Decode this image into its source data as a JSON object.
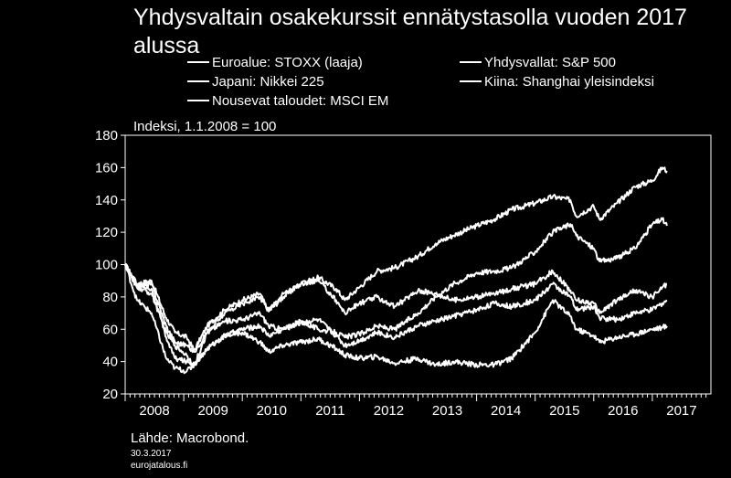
{
  "title": "Yhdysvaltain osakekurssit ennätystasolla vuoden 2017 alussa",
  "unit_label": "Indeksi, 1.1.2008 = 100",
  "legend": [
    "Euroalue: STOXX (laaja)",
    "Yhdysvallat: S&P 500",
    "Japani: Nikkei 225",
    "Kiina: Shanghai yleisindeksi",
    "Nousevat taloudet: MSCI EM"
  ],
  "footer": {
    "source": "Lähde: Macrobond.",
    "date": "30.3.2017",
    "site": "eurojatalous.fi"
  },
  "colors": {
    "background": "#000000",
    "lines": "#ffffff"
  },
  "chart_data": {
    "type": "line",
    "title": "Yhdysvaltain osakekurssit ennätystasolla vuoden 2017 alussa",
    "ylabel": "Indeksi, 1.1.2008 = 100",
    "xlabel": "",
    "ylim": [
      20,
      180
    ],
    "xlim": [
      2008,
      2018
    ],
    "y_ticks": [
      20,
      40,
      60,
      80,
      100,
      120,
      140,
      160,
      180
    ],
    "x_tick_labels": [
      "2008",
      "2009",
      "2010",
      "2011",
      "2012",
      "2013",
      "2014",
      "2015",
      "2016",
      "2017"
    ],
    "grid": false,
    "legend_position": "top",
    "series": [
      {
        "name": "Yhdysvallat: S&P 500",
        "x": [
          2008.0,
          2008.2,
          2008.45,
          2008.7,
          2008.85,
          2009.05,
          2009.18,
          2009.4,
          2009.7,
          2010.0,
          2010.3,
          2010.45,
          2010.7,
          2011.0,
          2011.3,
          2011.6,
          2011.75,
          2012.0,
          2012.3,
          2012.6,
          2013.0,
          2013.3,
          2013.6,
          2014.0,
          2014.3,
          2014.6,
          2015.0,
          2015.3,
          2015.6,
          2015.7,
          2016.0,
          2016.1,
          2016.4,
          2016.7,
          2017.0,
          2017.17,
          2017.25
        ],
        "y": [
          100,
          88,
          90,
          67,
          58,
          55,
          47,
          62,
          72,
          78,
          82,
          71,
          80,
          88,
          92,
          85,
          78,
          86,
          96,
          98,
          105,
          113,
          118,
          124,
          128,
          134,
          138,
          142,
          140,
          130,
          136,
          128,
          138,
          148,
          152,
          160,
          158
        ]
      },
      {
        "name": "Euroalue: STOXX (laaja)",
        "x": [
          2008.0,
          2008.2,
          2008.45,
          2008.7,
          2008.85,
          2009.05,
          2009.18,
          2009.4,
          2009.7,
          2010.0,
          2010.3,
          2010.45,
          2010.7,
          2011.0,
          2011.3,
          2011.6,
          2011.75,
          2012.0,
          2012.3,
          2012.6,
          2013.0,
          2013.3,
          2013.6,
          2014.0,
          2014.3,
          2014.6,
          2015.0,
          2015.3,
          2015.6,
          2015.7,
          2016.0,
          2016.1,
          2016.4,
          2016.7,
          2017.0,
          2017.17,
          2017.25
        ],
        "y": [
          100,
          86,
          82,
          58,
          50,
          44,
          38,
          48,
          56,
          60,
          62,
          56,
          60,
          64,
          66,
          56,
          50,
          53,
          58,
          55,
          62,
          65,
          68,
          72,
          76,
          74,
          78,
          88,
          80,
          72,
          74,
          67,
          66,
          70,
          72,
          76,
          78
        ]
      },
      {
        "name": "Japani: Nikkei 225",
        "x": [
          2008.0,
          2008.2,
          2008.45,
          2008.7,
          2008.85,
          2009.05,
          2009.18,
          2009.4,
          2009.7,
          2010.0,
          2010.3,
          2010.45,
          2010.7,
          2011.0,
          2011.3,
          2011.6,
          2011.75,
          2012.0,
          2012.3,
          2012.6,
          2013.0,
          2013.3,
          2013.6,
          2014.0,
          2014.3,
          2014.6,
          2015.0,
          2015.3,
          2015.6,
          2015.7,
          2016.0,
          2016.1,
          2016.4,
          2016.7,
          2017.0,
          2017.17,
          2017.25
        ],
        "y": [
          100,
          86,
          88,
          62,
          52,
          50,
          46,
          58,
          65,
          66,
          70,
          62,
          60,
          65,
          60,
          58,
          55,
          57,
          62,
          60,
          70,
          80,
          88,
          95,
          96,
          98,
          108,
          120,
          125,
          118,
          110,
          102,
          104,
          110,
          125,
          128,
          124
        ]
      },
      {
        "name": "Kiina: Shanghai yleisindeksi",
        "x": [
          2008.0,
          2008.2,
          2008.45,
          2008.7,
          2008.85,
          2009.05,
          2009.18,
          2009.4,
          2009.7,
          2010.0,
          2010.3,
          2010.45,
          2010.7,
          2011.0,
          2011.3,
          2011.6,
          2011.75,
          2012.0,
          2012.3,
          2012.6,
          2013.0,
          2013.3,
          2013.6,
          2014.0,
          2014.3,
          2014.6,
          2015.0,
          2015.3,
          2015.6,
          2015.7,
          2016.0,
          2016.1,
          2016.4,
          2016.7,
          2017.0,
          2017.17,
          2017.25
        ],
        "y": [
          100,
          78,
          70,
          42,
          36,
          34,
          38,
          48,
          56,
          58,
          52,
          46,
          50,
          52,
          54,
          48,
          44,
          42,
          43,
          39,
          42,
          38,
          40,
          38,
          38,
          42,
          58,
          78,
          68,
          60,
          56,
          52,
          55,
          57,
          60,
          61,
          62
        ]
      },
      {
        "name": "Nousevat taloudet: MSCI EM",
        "x": [
          2008.0,
          2008.2,
          2008.45,
          2008.7,
          2008.85,
          2009.05,
          2009.18,
          2009.4,
          2009.7,
          2010.0,
          2010.3,
          2010.45,
          2010.7,
          2011.0,
          2011.3,
          2011.6,
          2011.75,
          2012.0,
          2012.3,
          2012.6,
          2013.0,
          2013.3,
          2013.6,
          2014.0,
          2014.3,
          2014.6,
          2015.0,
          2015.3,
          2015.6,
          2015.7,
          2016.0,
          2016.1,
          2016.4,
          2016.7,
          2017.0,
          2017.17,
          2017.25
        ],
        "y": [
          100,
          88,
          85,
          55,
          42,
          40,
          38,
          58,
          70,
          76,
          80,
          72,
          82,
          88,
          90,
          78,
          70,
          76,
          80,
          74,
          84,
          82,
          78,
          80,
          82,
          85,
          88,
          96,
          84,
          78,
          76,
          70,
          78,
          84,
          80,
          86,
          88
        ]
      }
    ]
  }
}
